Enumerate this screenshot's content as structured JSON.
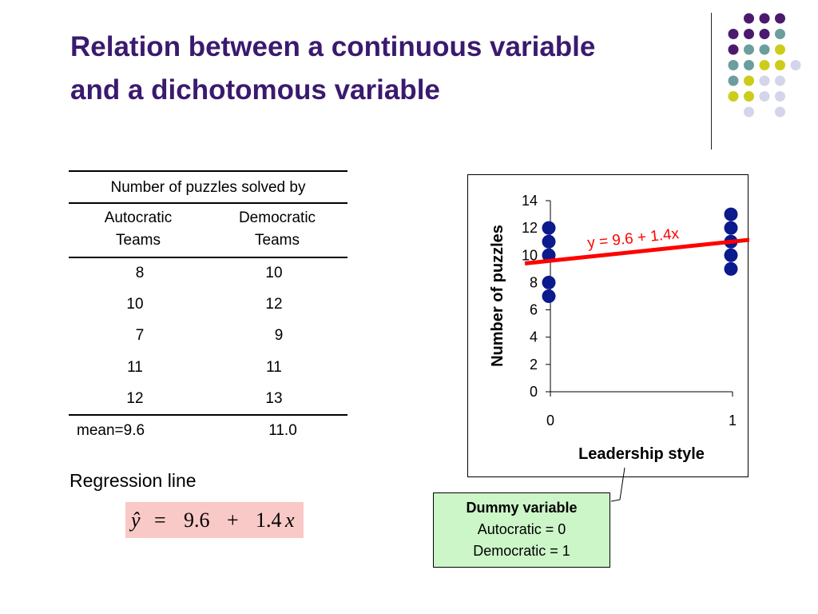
{
  "title": {
    "line1": "Relation between a continuous variable",
    "line2": "and a dichotomous variable"
  },
  "table": {
    "heading": "Number of puzzles solved by",
    "col1_header": [
      "Autocratic",
      "Teams"
    ],
    "col2_header": [
      "Democratic",
      "Teams"
    ],
    "rows": [
      [
        "8",
        "10"
      ],
      [
        "10",
        "12"
      ],
      [
        "7",
        "9"
      ],
      [
        "11",
        "11"
      ],
      [
        "12",
        "13"
      ]
    ],
    "mean_label": "mean=9.6",
    "mean_col2": "11.0"
  },
  "regression": {
    "label": "Regression line",
    "equation": {
      "lhs": "ŷ",
      "eq": "=",
      "intercept": "9.6",
      "plus": "+",
      "slope": "1.4",
      "var": "x"
    }
  },
  "chart_data": {
    "type": "scatter",
    "title": "",
    "xlabel": "Leadership style",
    "ylabel": "Number of puzzles",
    "xlim": [
      0,
      1
    ],
    "ylim": [
      0,
      14
    ],
    "xticks": [
      0,
      1
    ],
    "yticks": [
      0,
      2,
      4,
      6,
      8,
      10,
      12,
      14
    ],
    "grid": false,
    "series": [
      {
        "points": [
          [
            0,
            8
          ],
          [
            0,
            10
          ],
          [
            0,
            7
          ],
          [
            0,
            11
          ],
          [
            0,
            12
          ],
          [
            1,
            10
          ],
          [
            1,
            12
          ],
          [
            1,
            9
          ],
          [
            1,
            11
          ],
          [
            1,
            13
          ]
        ],
        "color": "#0b1a8c"
      }
    ],
    "regression_line": {
      "intercept": 9.6,
      "slope": 1.4,
      "color": "#ff0000",
      "label": "y = 9.6 + 1.4x"
    }
  },
  "dummy": {
    "title": "Dummy variable",
    "line1": "Autocratic = 0",
    "line2": "Democratic = 1"
  },
  "colors": {
    "title": "#3a1a6e",
    "dot_purple": "#4b1a6e",
    "dot_teal": "#6b9e9e",
    "dot_yellow": "#cccc1a",
    "dot_lavender": "#d4d4ea"
  }
}
